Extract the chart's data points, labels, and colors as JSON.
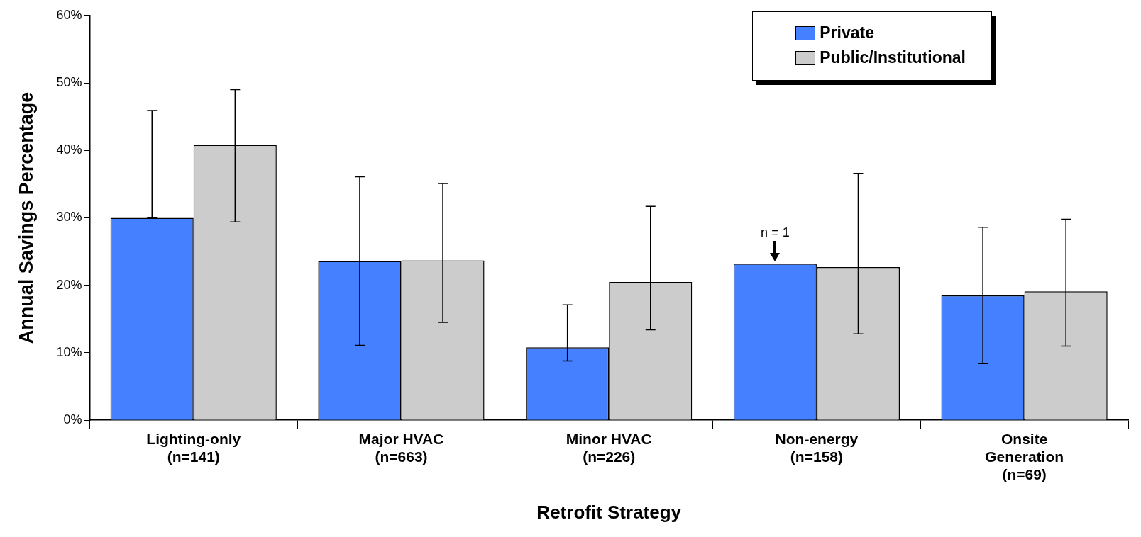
{
  "chart_data": {
    "type": "bar",
    "xlabel": "Retrofit Strategy",
    "ylabel": "Annual Savings Percentage",
    "categories": [
      "Lighting-only\n(n=141)",
      "Major HVAC\n(n=663)",
      "Minor HVAC\n(n=226)",
      "Non-energy\n(n=158)",
      "Onsite\nGeneration\n(n=69)"
    ],
    "series": [
      {
        "name": "Private",
        "color": "#4480ff",
        "values": [
          30.0,
          23.6,
          10.8,
          23.2,
          18.5
        ],
        "errors": [
          [
            30.0,
            45.9
          ],
          12.5,
          [
            8.8,
            17.1
          ],
          null,
          10.1
        ]
      },
      {
        "name": "Public/Institutional",
        "color": "#cccccc",
        "values": [
          40.8,
          23.7,
          20.5,
          22.7,
          19.1
        ],
        "errors": [
          [
            29.4,
            49.0
          ],
          [
            14.5,
            35.1
          ],
          [
            13.4,
            31.7
          ],
          [
            12.8,
            36.6
          ],
          [
            11.0,
            29.8
          ]
        ]
      }
    ],
    "ylim": [
      0,
      60
    ],
    "yticks": [
      {
        "value": 0,
        "label": "0%"
      },
      {
        "value": 10,
        "label": "10%"
      },
      {
        "value": 20,
        "label": "20%"
      },
      {
        "value": 30,
        "label": "30%"
      },
      {
        "value": 40,
        "label": "40%"
      },
      {
        "value": 50,
        "label": "50%"
      },
      {
        "value": 60,
        "label": "60%"
      }
    ],
    "grid": false,
    "legend": "top right",
    "annotations": [
      {
        "text": "n = 1",
        "x": "Non-energy\n(n=158)",
        "y": 23.2
      }
    ]
  }
}
